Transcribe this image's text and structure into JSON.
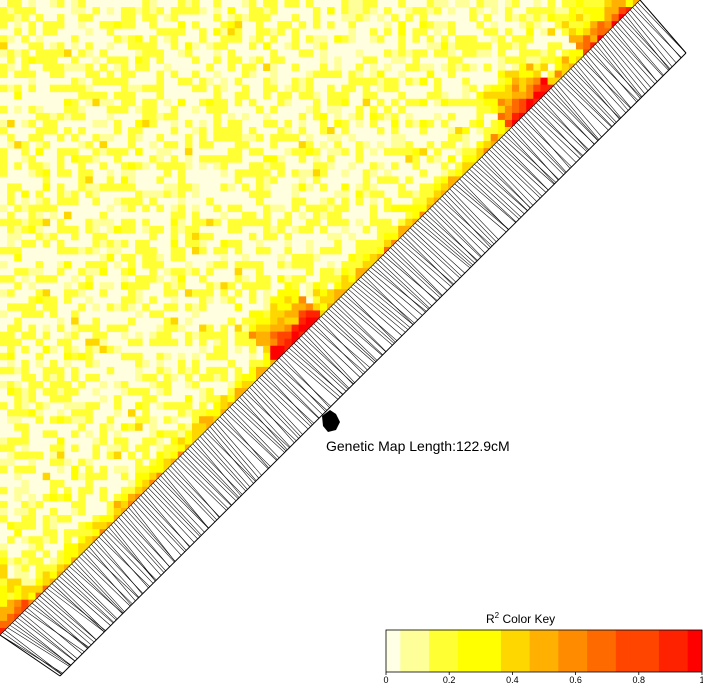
{
  "chart_data": {
    "type": "heatmap",
    "title": "",
    "subtitle": "",
    "map_length_label": "Genetic Map Length:122.9cM",
    "color_key": {
      "title_base": "R",
      "title_sup": "2",
      "title_rest": " Color Key",
      "min": 0,
      "max": 1,
      "ticks": [
        {
          "value": 0,
          "label": "0"
        },
        {
          "value": 0.2,
          "label": "0.2"
        },
        {
          "value": 0.4,
          "label": "0.4"
        },
        {
          "value": 0.6,
          "label": "0.6"
        },
        {
          "value": 0.8,
          "label": "0.8"
        },
        {
          "value": 1,
          "label": "1"
        }
      ],
      "colors": [
        "#ffffe5",
        "#ffff99",
        "#ffff33",
        "#ffff00",
        "#ffd700",
        "#ffb000",
        "#ff8c00",
        "#ff6a00",
        "#ff4500",
        "#ff2200",
        "#ff0000"
      ]
    },
    "ld_blocks": [
      {
        "pos_start": 0.0,
        "pos_end": 0.05,
        "r2": 0.35
      },
      {
        "pos_start": 0.43,
        "pos_end": 0.5,
        "r2": 0.75
      },
      {
        "pos_start": 0.8,
        "pos_end": 0.87,
        "r2": 0.7
      },
      {
        "pos_start": 0.92,
        "pos_end": 0.99,
        "r2": 0.45
      }
    ],
    "marker_positions_cM": []
  }
}
